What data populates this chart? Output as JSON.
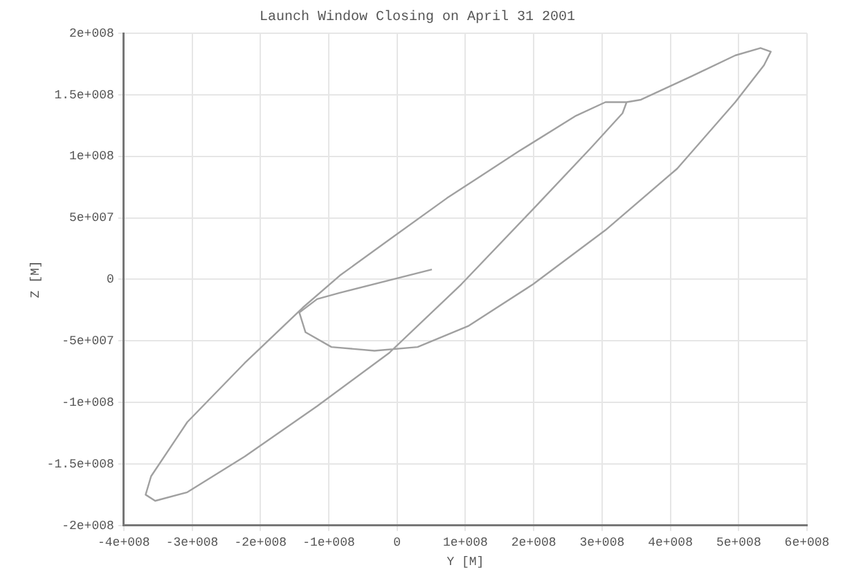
{
  "chart_data": {
    "type": "line",
    "title": "Launch Window Closing on April 31 2001",
    "xlabel": "Y [M]",
    "ylabel": "Z [M]",
    "x": [
      51000000,
      -84000000,
      -117000000,
      -143000000,
      -134000000,
      -96000000,
      -33000000,
      30000000,
      104000000,
      199000000,
      305000000,
      410000000,
      495000000,
      537000000,
      547000000,
      532000000,
      495000000,
      431000000,
      357000000,
      336000000,
      305000000,
      262000000,
      178000000,
      73000000,
      -12000000,
      -84000000,
      -138000000,
      -223000000,
      -307000000,
      -360000000,
      -368000000,
      -354000000,
      -307000000,
      -223000000,
      -117000000,
      -12000000,
      94000000,
      199000000,
      284000000,
      330000000,
      336000000
    ],
    "series": [
      {
        "color": "#a0a0a0",
        "values": [
          8000000,
          -11000000,
          -16000000,
          -27000000,
          -43000000,
          -55000000,
          -58000000,
          -55000000,
          -38000000,
          -4000000,
          40000000,
          90000000,
          144000000,
          174000000,
          185000000,
          188000000,
          182000000,
          165000000,
          146000000,
          144000000,
          144000000,
          133000000,
          104000000,
          66000000,
          32000000,
          3000000,
          -23000000,
          -68000000,
          -116000000,
          -160000000,
          -175000000,
          -180000000,
          -173000000,
          -144000000,
          -103000000,
          -60000000,
          -4000000,
          57000000,
          107000000,
          135000000,
          144000000
        ]
      }
    ],
    "xlim": [
      -400000000,
      600000000
    ],
    "xticks": [
      {
        "value": -400000000,
        "label": "-4e+008"
      },
      {
        "value": -300000000,
        "label": "-3e+008"
      },
      {
        "value": -200000000,
        "label": "-2e+008"
      },
      {
        "value": -100000000,
        "label": "-1e+008"
      },
      0,
      {
        "value": 100000000,
        "label": "1e+008"
      },
      {
        "value": 200000000,
        "label": "2e+008"
      },
      {
        "value": 300000000,
        "label": "3e+008"
      },
      {
        "value": 400000000,
        "label": "4e+008"
      },
      {
        "value": 500000000,
        "label": "5e+008"
      },
      {
        "value": 600000000,
        "label": "6e+008"
      }
    ],
    "ylim": [
      -200000000,
      200000000
    ],
    "yticks": [
      {
        "value": -200000000,
        "label": "-2e+008"
      },
      {
        "value": -150000000,
        "label": "-1.5e+008"
      },
      {
        "value": -100000000,
        "label": "-1e+008"
      },
      {
        "value": -50000000,
        "label": "-5e+007"
      },
      0,
      {
        "value": 50000000,
        "label": "5e+007"
      },
      {
        "value": 100000000,
        "label": "1e+008"
      },
      {
        "value": 150000000,
        "label": "1.5e+008"
      },
      {
        "value": 200000000,
        "label": "2e+008"
      }
    ],
    "grid": true,
    "marker": "none",
    "line_style": "solid"
  }
}
